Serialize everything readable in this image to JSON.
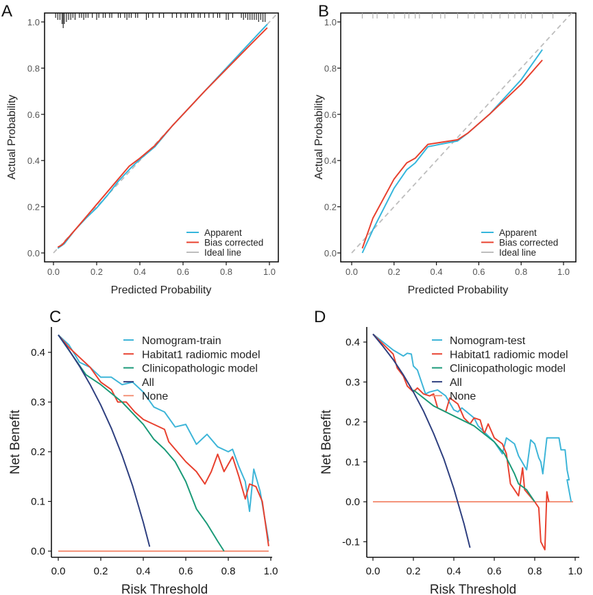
{
  "chart_data": [
    {
      "type": "line",
      "panel_label": "A",
      "title": "",
      "xlabel": "Predicted Probability",
      "ylabel": "Actual Probability",
      "xlim": [
        0,
        1
      ],
      "ylim": [
        0,
        1
      ],
      "xticks": [
        "0.0",
        "0.2",
        "0.4",
        "0.6",
        "0.8",
        "1.0"
      ],
      "yticks": [
        "0.0",
        "0.2",
        "0.4",
        "0.6",
        "0.8",
        "1.0"
      ],
      "legend_position": "bottom-right",
      "series": [
        {
          "name": "Apparent",
          "color": "#35b6dc",
          "dash": false,
          "x": [
            0.02,
            0.05,
            0.1,
            0.15,
            0.2,
            0.25,
            0.3,
            0.36,
            0.4,
            0.47,
            0.55,
            0.6,
            0.7,
            0.8,
            0.9,
            0.99
          ],
          "y": [
            0.02,
            0.04,
            0.1,
            0.15,
            0.195,
            0.25,
            0.31,
            0.37,
            0.405,
            0.46,
            0.55,
            0.6,
            0.7,
            0.8,
            0.9,
            0.99
          ]
        },
        {
          "name": "Bias corrected",
          "color": "#e8402e",
          "dash": false,
          "x": [
            0.02,
            0.04,
            0.1,
            0.15,
            0.2,
            0.25,
            0.3,
            0.35,
            0.4,
            0.47,
            0.55,
            0.6,
            0.7,
            0.8,
            0.9,
            0.99
          ],
          "y": [
            0.025,
            0.035,
            0.1,
            0.155,
            0.21,
            0.265,
            0.32,
            0.375,
            0.41,
            0.465,
            0.55,
            0.6,
            0.7,
            0.795,
            0.89,
            0.975
          ]
        },
        {
          "name": "Ideal line",
          "color": "#bdbdbd",
          "dash": true,
          "x": [
            0,
            1.04
          ],
          "y": [
            0,
            1.04
          ]
        }
      ],
      "rug": {
        "color": "#111",
        "x": [
          0.01,
          0.02,
          0.03,
          0.04,
          0.045,
          0.05,
          0.06,
          0.07,
          0.08,
          0.09,
          0.1,
          0.12,
          0.13,
          0.14,
          0.15,
          0.16,
          0.18,
          0.2,
          0.21,
          0.23,
          0.24,
          0.26,
          0.27,
          0.3,
          0.31,
          0.33,
          0.34,
          0.35,
          0.36,
          0.38,
          0.39,
          0.43,
          0.44,
          0.46,
          0.49,
          0.51,
          0.55,
          0.57,
          0.59,
          0.61,
          0.62,
          0.64,
          0.65,
          0.67,
          0.68,
          0.7,
          0.72,
          0.74,
          0.76,
          0.77,
          0.8,
          0.81,
          0.83,
          0.87,
          0.88,
          0.89,
          0.9,
          0.91,
          0.92,
          0.93,
          0.94,
          0.95,
          0.96,
          0.97,
          0.98
        ],
        "count": [
          1,
          2,
          2,
          4,
          6,
          4,
          3,
          2,
          2,
          1,
          2,
          1,
          1,
          2,
          1,
          1,
          1,
          2,
          1,
          1,
          1,
          1,
          1,
          1,
          1,
          1,
          2,
          1,
          1,
          1,
          1,
          2,
          1,
          1,
          1,
          1,
          1,
          1,
          1,
          1,
          1,
          1,
          1,
          1,
          1,
          1,
          1,
          1,
          1,
          1,
          2,
          2,
          1,
          1,
          2,
          1,
          2,
          2,
          2,
          2,
          2,
          3,
          2,
          3,
          3
        ]
      }
    },
    {
      "type": "line",
      "panel_label": "B",
      "title": "",
      "xlabel": "Predicted Probability",
      "ylabel": "Actual Probability",
      "xlim": [
        0,
        1
      ],
      "ylim": [
        0,
        1
      ],
      "xticks": [
        "0.0",
        "0.2",
        "0.4",
        "0.6",
        "0.8",
        "1.0"
      ],
      "yticks": [
        "0.0",
        "0.2",
        "0.4",
        "0.6",
        "0.8",
        "1.0"
      ],
      "legend_position": "bottom-right",
      "series": [
        {
          "name": "Apparent",
          "color": "#35b6dc",
          "dash": false,
          "x": [
            0.05,
            0.1,
            0.2,
            0.26,
            0.3,
            0.36,
            0.5,
            0.55,
            0.65,
            0.8,
            0.9
          ],
          "y": [
            0.0,
            0.1,
            0.28,
            0.36,
            0.39,
            0.46,
            0.485,
            0.52,
            0.6,
            0.75,
            0.88
          ]
        },
        {
          "name": "Bias corrected",
          "color": "#e8402e",
          "dash": false,
          "x": [
            0.05,
            0.1,
            0.2,
            0.26,
            0.3,
            0.36,
            0.5,
            0.55,
            0.65,
            0.8,
            0.9
          ],
          "y": [
            0.02,
            0.15,
            0.32,
            0.39,
            0.41,
            0.47,
            0.49,
            0.52,
            0.6,
            0.73,
            0.835
          ]
        },
        {
          "name": "Ideal line",
          "color": "#bdbdbd",
          "dash": true,
          "x": [
            0,
            1.04
          ],
          "y": [
            0,
            1.04
          ]
        }
      ],
      "rug": {
        "color": "#aaa",
        "x": [
          0.05,
          0.1,
          0.12,
          0.17,
          0.2,
          0.25,
          0.27,
          0.3,
          0.32,
          0.38,
          0.42,
          0.44,
          0.5,
          0.55,
          0.58,
          0.62,
          0.66,
          0.7,
          0.74,
          0.77,
          0.8,
          0.82,
          0.85,
          0.9,
          0.95
        ],
        "count": [
          1,
          1,
          1,
          1,
          1,
          1,
          1,
          1,
          1,
          1,
          1,
          1,
          1,
          1,
          1,
          1,
          1,
          1,
          1,
          1,
          1,
          1,
          1,
          1,
          1
        ]
      }
    },
    {
      "type": "line",
      "panel_label": "C",
      "title": "",
      "xlabel": "Risk Threshold",
      "ylabel": "Net Benefit",
      "xlim": [
        0,
        1
      ],
      "ylim": [
        0,
        0.44
      ],
      "xticks": [
        "0.0",
        "0.2",
        "0.4",
        "0.6",
        "0.8",
        "1.0"
      ],
      "yticks": [
        "0.0",
        "0.1",
        "0.2",
        "0.3",
        "0.4"
      ],
      "legend_position": "top-right",
      "series": [
        {
          "name": "Nomogram-train",
          "color": "#3db5d8",
          "x": [
            0,
            0.05,
            0.1,
            0.15,
            0.2,
            0.25,
            0.3,
            0.35,
            0.4,
            0.45,
            0.5,
            0.55,
            0.6,
            0.65,
            0.7,
            0.75,
            0.8,
            0.82,
            0.85,
            0.88,
            0.9,
            0.92,
            0.95,
            0.99
          ],
          "y": [
            0.435,
            0.415,
            0.38,
            0.37,
            0.35,
            0.35,
            0.335,
            0.34,
            0.32,
            0.29,
            0.28,
            0.25,
            0.255,
            0.215,
            0.235,
            0.21,
            0.2,
            0.205,
            0.17,
            0.14,
            0.08,
            0.165,
            0.12,
            0.02
          ]
        },
        {
          "name": "Habitat1 radiomic model",
          "color": "#e8402e",
          "x": [
            0,
            0.05,
            0.1,
            0.15,
            0.2,
            0.25,
            0.28,
            0.32,
            0.36,
            0.4,
            0.45,
            0.5,
            0.52,
            0.55,
            0.6,
            0.65,
            0.69,
            0.72,
            0.75,
            0.78,
            0.8,
            0.82,
            0.85,
            0.88,
            0.9,
            0.93,
            0.96,
            0.99
          ],
          "y": [
            0.435,
            0.41,
            0.39,
            0.37,
            0.34,
            0.325,
            0.3,
            0.3,
            0.28,
            0.265,
            0.255,
            0.245,
            0.22,
            0.205,
            0.18,
            0.16,
            0.135,
            0.16,
            0.195,
            0.16,
            0.175,
            0.19,
            0.15,
            0.105,
            0.135,
            0.13,
            0.1,
            0.01
          ]
        },
        {
          "name": "Clinicopathologic model",
          "color": "#1a9a78",
          "x": [
            0,
            0.13,
            0.2,
            0.3,
            0.4,
            0.45,
            0.5,
            0.55,
            0.6,
            0.65,
            0.7,
            0.75,
            0.78
          ],
          "y": [
            0.435,
            0.355,
            0.335,
            0.3,
            0.255,
            0.225,
            0.205,
            0.18,
            0.14,
            0.085,
            0.055,
            0.02,
            0.0
          ]
        },
        {
          "name": "All",
          "color": "#2e3f7f",
          "x": [
            0,
            0.05,
            0.1,
            0.15,
            0.2,
            0.25,
            0.3,
            0.35,
            0.4,
            0.43
          ],
          "y": [
            0.435,
            0.405,
            0.372,
            0.335,
            0.294,
            0.247,
            0.193,
            0.131,
            0.058,
            0.009
          ]
        },
        {
          "name": "None",
          "color": "#f4937a",
          "x": [
            0,
            0.99
          ],
          "y": [
            0,
            0
          ]
        }
      ]
    },
    {
      "type": "line",
      "panel_label": "D",
      "title": "",
      "xlabel": "Risk Threshold",
      "ylabel": "Net Benefit",
      "xlim": [
        0,
        1
      ],
      "ylim": [
        -0.12,
        0.42
      ],
      "xticks": [
        "0.0",
        "0.2",
        "0.4",
        "0.6",
        "0.8",
        "1.0"
      ],
      "yticks": [
        "-0.1",
        "0.0",
        "0.1",
        "0.2",
        "0.3",
        "0.4"
      ],
      "legend_position": "top-right",
      "series": [
        {
          "name": "Nomogram-test",
          "color": "#3db5d8",
          "x": [
            0,
            0.05,
            0.1,
            0.15,
            0.17,
            0.19,
            0.2,
            0.22,
            0.24,
            0.26,
            0.28,
            0.32,
            0.36,
            0.4,
            0.42,
            0.44,
            0.5,
            0.52,
            0.6,
            0.64,
            0.66,
            0.7,
            0.72,
            0.76,
            0.78,
            0.8,
            0.82,
            0.83,
            0.84,
            0.86,
            0.92,
            0.93,
            0.95,
            0.96,
            0.97,
            0.96,
            0.98
          ],
          "y": [
            0.42,
            0.4,
            0.38,
            0.365,
            0.372,
            0.37,
            0.34,
            0.33,
            0.3,
            0.27,
            0.275,
            0.28,
            0.265,
            0.23,
            0.225,
            0.235,
            0.21,
            0.19,
            0.15,
            0.12,
            0.16,
            0.145,
            0.115,
            0.08,
            0.155,
            0.145,
            0.11,
            0.1,
            0.07,
            0.16,
            0.16,
            0.13,
            0.13,
            0.08,
            0.055,
            0.055,
            0.0
          ]
        },
        {
          "name": "Habitat1 radiomic model",
          "color": "#e8402e",
          "x": [
            0,
            0.1,
            0.12,
            0.15,
            0.17,
            0.2,
            0.22,
            0.25,
            0.28,
            0.3,
            0.32,
            0.36,
            0.38,
            0.42,
            0.45,
            0.48,
            0.5,
            0.53,
            0.55,
            0.57,
            0.6,
            0.64,
            0.66,
            0.68,
            0.72,
            0.74,
            0.75,
            0.8,
            0.82,
            0.83,
            0.85,
            0.86,
            0.87
          ],
          "y": [
            0.42,
            0.37,
            0.335,
            0.315,
            0.29,
            0.275,
            0.285,
            0.27,
            0.265,
            0.27,
            0.235,
            0.225,
            0.26,
            0.245,
            0.21,
            0.195,
            0.21,
            0.205,
            0.17,
            0.195,
            0.16,
            0.145,
            0.12,
            0.045,
            0.015,
            0.085,
            0.03,
            0.0,
            -0.015,
            -0.1,
            -0.12,
            0.025,
            0.0
          ]
        },
        {
          "name": "Clinicopathologic model",
          "color": "#1a9a78",
          "x": [
            0.2,
            0.3,
            0.4,
            0.5,
            0.6,
            0.65,
            0.7,
            0.72,
            0.76,
            0.8
          ],
          "y": [
            0.28,
            0.24,
            0.215,
            0.19,
            0.15,
            0.12,
            0.07,
            0.045,
            0.03,
            0.0
          ]
        },
        {
          "name": "All",
          "color": "#2e3f7f",
          "x": [
            0,
            0.05,
            0.1,
            0.15,
            0.2,
            0.25,
            0.3,
            0.35,
            0.4,
            0.45,
            0.48
          ],
          "y": [
            0.42,
            0.389,
            0.356,
            0.318,
            0.275,
            0.227,
            0.171,
            0.108,
            0.033,
            -0.055,
            -0.115
          ]
        },
        {
          "name": "None",
          "color": "#f4937a",
          "x": [
            0,
            0.99
          ],
          "y": [
            0,
            0
          ]
        }
      ]
    }
  ]
}
